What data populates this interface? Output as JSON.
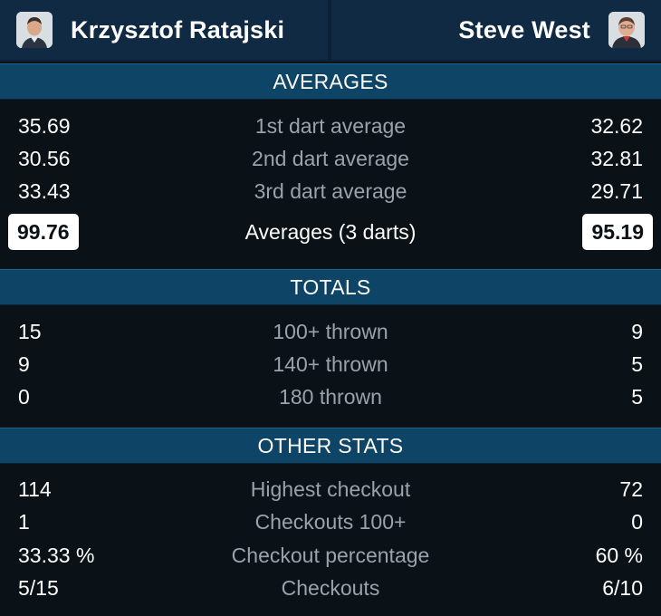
{
  "players": {
    "left": {
      "name": "Krzysztof Ratajski"
    },
    "right": {
      "name": "Steve West"
    }
  },
  "sections": {
    "averages": {
      "title": "AVERAGES",
      "rows": [
        {
          "label": "1st dart average",
          "left": "35.69",
          "right": "32.62"
        },
        {
          "label": "2nd dart average",
          "left": "30.56",
          "right": "32.81"
        },
        {
          "label": "3rd dart average",
          "left": "33.43",
          "right": "29.71"
        }
      ],
      "total": {
        "label": "Averages (3 darts)",
        "left": "99.76",
        "right": "95.19"
      }
    },
    "totals": {
      "title": "TOTALS",
      "rows": [
        {
          "label": "100+ thrown",
          "left": "15",
          "right": "9"
        },
        {
          "label": "140+ thrown",
          "left": "9",
          "right": "5"
        },
        {
          "label": "180 thrown",
          "left": "0",
          "right": "5"
        }
      ]
    },
    "other": {
      "title": "OTHER STATS",
      "rows": [
        {
          "label": "Highest checkout",
          "left": "114",
          "right": "72"
        },
        {
          "label": "Checkouts 100+",
          "left": "1",
          "right": "0"
        },
        {
          "label": "Checkout percentage",
          "left": "33.33 %",
          "right": "60 %"
        },
        {
          "label": "Checkouts",
          "left": "5/15",
          "right": "6/10"
        }
      ]
    }
  },
  "colors": {
    "header_bg": "#102a44",
    "section_bg": "#0e4466",
    "body_bg": "#0a1117",
    "label_gray": "#9aa3aa"
  }
}
